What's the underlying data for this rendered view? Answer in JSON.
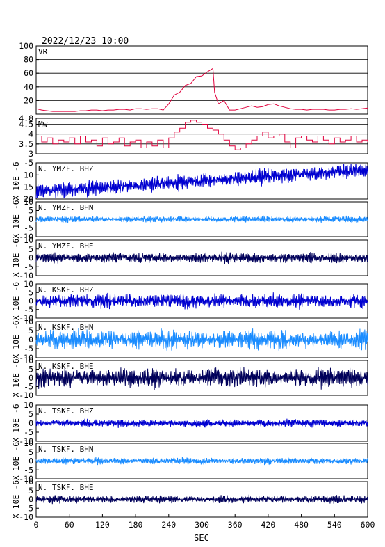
{
  "header": {
    "datetime": "2022/12/23  10:00"
  },
  "colors": {
    "vr_line": "#e0003c",
    "mw_line": "#e0003c",
    "bhz": "#0000d0",
    "bhn": "#1a8cff",
    "bhe": "#00005a",
    "frame": "#000000",
    "grid": "#000000"
  },
  "chart_data": [
    {
      "type": "line",
      "panel": "vr",
      "label": "VR",
      "ylim": [
        0,
        100
      ],
      "yticks": [
        20,
        40,
        60,
        80,
        100
      ],
      "grid": true,
      "x": [
        0,
        10,
        20,
        30,
        40,
        50,
        60,
        70,
        80,
        90,
        100,
        110,
        120,
        130,
        140,
        150,
        160,
        170,
        180,
        190,
        200,
        210,
        220,
        230,
        240,
        250,
        260,
        270,
        280,
        290,
        300,
        310,
        320,
        323,
        330,
        340,
        350,
        360,
        370,
        380,
        390,
        400,
        410,
        420,
        430,
        440,
        450,
        460,
        470,
        480,
        490,
        500,
        510,
        520,
        530,
        540,
        550,
        560,
        570,
        580,
        590,
        600
      ],
      "values": [
        8,
        6,
        5,
        4,
        4,
        4,
        4,
        4,
        5,
        5,
        6,
        6,
        5,
        6,
        6,
        7,
        7,
        6,
        8,
        8,
        7,
        8,
        8,
        6,
        15,
        28,
        32,
        42,
        45,
        55,
        56,
        62,
        67,
        32,
        15,
        20,
        6,
        6,
        8,
        10,
        12,
        10,
        11,
        14,
        15,
        12,
        10,
        8,
        7,
        7,
        6,
        7,
        7,
        7,
        6,
        6,
        7,
        7,
        8,
        7,
        8,
        9
      ]
    },
    {
      "type": "line",
      "panel": "mw",
      "label": "Mw",
      "ylim": [
        3.0,
        4.8
      ],
      "yticks": [
        3.0,
        3.5,
        4.0,
        4.5,
        4.8
      ],
      "grid": true,
      "x": [
        0,
        10,
        20,
        30,
        40,
        50,
        60,
        70,
        80,
        90,
        100,
        110,
        120,
        130,
        140,
        150,
        160,
        170,
        180,
        190,
        200,
        210,
        220,
        230,
        240,
        250,
        260,
        270,
        280,
        290,
        300,
        310,
        320,
        330,
        340,
        350,
        360,
        370,
        380,
        390,
        400,
        410,
        420,
        430,
        440,
        450,
        460,
        470,
        480,
        490,
        500,
        510,
        520,
        530,
        540,
        550,
        560,
        570,
        580,
        590,
        600
      ],
      "values": [
        3.9,
        3.6,
        3.8,
        3.5,
        3.7,
        3.6,
        3.8,
        3.5,
        3.9,
        3.6,
        3.7,
        3.4,
        3.8,
        3.5,
        3.6,
        3.8,
        3.4,
        3.6,
        3.7,
        3.3,
        3.6,
        3.4,
        3.7,
        3.3,
        3.8,
        4.1,
        4.3,
        4.6,
        4.7,
        4.6,
        4.5,
        4.3,
        4.2,
        4.0,
        3.7,
        3.4,
        3.2,
        3.3,
        3.5,
        3.7,
        3.9,
        4.1,
        3.8,
        3.9,
        4.0,
        3.6,
        3.3,
        3.8,
        3.9,
        3.7,
        3.6,
        3.9,
        3.7,
        3.5,
        3.8,
        3.6,
        3.7,
        3.9,
        3.6,
        3.7,
        3.6
      ]
    },
    {
      "type": "line",
      "panel": "trace",
      "station": "N. YMZF. BHZ",
      "series_color": "bhz",
      "ylim": [
        -20,
        -5
      ],
      "ytick_labels": [
        "-5",
        "10",
        "15",
        "20"
      ],
      "yticks": [
        -5,
        -10,
        -15,
        -20
      ],
      "trend": [
        -17,
        -8
      ],
      "amplitude": 2.4,
      "seed": 11,
      "grid": false
    },
    {
      "type": "line",
      "panel": "trace",
      "station": "N. YMZF. BHN",
      "series_color": "bhn",
      "ylim": [
        -10,
        10
      ],
      "yticks": [
        10,
        5,
        0,
        -5,
        -10
      ],
      "ytick_labels": [
        "10",
        "5",
        "0",
        "-5",
        "-10"
      ],
      "amplitude": 1.3,
      "seed": 23,
      "grid": false
    },
    {
      "type": "line",
      "panel": "trace",
      "station": "N. YMZF. BHE",
      "series_color": "bhe",
      "ylim": [
        -10,
        10
      ],
      "yticks": [
        10,
        5,
        0,
        -5,
        -10
      ],
      "ytick_labels": [
        "10",
        "5",
        "0",
        "-5",
        "-10"
      ],
      "amplitude": 2.2,
      "seed": 37,
      "grid": false
    },
    {
      "type": "line",
      "panel": "trace",
      "station": "N. KSKF. BHZ",
      "series_color": "bhz",
      "ylim": [
        -10,
        10
      ],
      "yticks": [
        10,
        5,
        0,
        -5,
        -10
      ],
      "ytick_labels": [
        "10",
        "5",
        "0",
        "-5",
        "-10"
      ],
      "amplitude": 3.2,
      "seed": 41,
      "grid": false
    },
    {
      "type": "line",
      "panel": "trace",
      "station": "N. KSKF. BHN",
      "series_color": "bhn",
      "ylim": [
        -10,
        10
      ],
      "yticks": [
        10,
        5,
        0,
        -5,
        -10
      ],
      "ytick_labels": [
        "10",
        "5",
        "0",
        "-5",
        "-10"
      ],
      "amplitude": 4.0,
      "seed": 53,
      "grid": false
    },
    {
      "type": "line",
      "panel": "trace",
      "station": "N. KSKF. BHE",
      "series_color": "bhe",
      "ylim": [
        -10,
        10
      ],
      "yticks": [
        10,
        5,
        0,
        -5,
        -10
      ],
      "ytick_labels": [
        "10",
        "5",
        "0",
        "-5",
        "-10"
      ],
      "amplitude": 4.2,
      "seed": 67,
      "grid": false
    },
    {
      "type": "line",
      "panel": "trace",
      "station": "N. TSKF. BHZ",
      "series_color": "bhz",
      "ylim": [
        -10,
        10
      ],
      "yticks": [
        10,
        5,
        0,
        -5,
        -10
      ],
      "ytick_labels": [
        "10",
        "5",
        "0",
        "-5",
        "-10"
      ],
      "amplitude": 1.6,
      "seed": 71,
      "grid": false
    },
    {
      "type": "line",
      "panel": "trace",
      "station": "N. TSKF. BHN",
      "series_color": "bhn",
      "ylim": [
        -10,
        10
      ],
      "yticks": [
        10,
        5,
        0,
        -5,
        -10
      ],
      "ytick_labels": [
        "10",
        "5",
        "0",
        "-5",
        "-10"
      ],
      "amplitude": 1.4,
      "seed": 83,
      "grid": false
    },
    {
      "type": "line",
      "panel": "trace",
      "station": "N. TSKF. BHE",
      "series_color": "bhe",
      "ylim": [
        -10,
        10
      ],
      "yticks": [
        10,
        5,
        0,
        -5,
        -10
      ],
      "ytick_labels": [
        "10",
        "5",
        "0",
        "-5",
        "-10"
      ],
      "amplitude": 1.6,
      "seed": 97,
      "grid": false
    }
  ],
  "axes": {
    "trace_ylabel": "X 10E -6",
    "xlabel": "SEC",
    "xlim": [
      0,
      600
    ],
    "xticks": [
      0,
      60,
      120,
      180,
      240,
      300,
      360,
      420,
      480,
      540,
      600
    ]
  }
}
